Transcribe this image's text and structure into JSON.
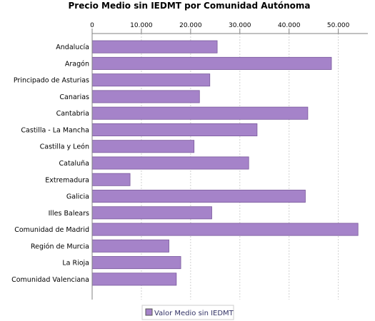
{
  "chart_data": {
    "type": "bar",
    "orientation": "horizontal",
    "title": "Precio Medio sin IEDMT por Comunidad Autónoma",
    "xlabel": "",
    "ylabel": "",
    "xlim": [
      0,
      56000
    ],
    "x_ticks": [
      0,
      10000,
      20000,
      30000,
      40000,
      50000
    ],
    "x_tick_labels": [
      "0",
      "10.000",
      "20.000",
      "30.000",
      "40.000",
      "50.000"
    ],
    "tick_position": "top",
    "grid": "vertical-dashed",
    "legend_position": "bottom-center",
    "categories": [
      "Andalucía",
      "Aragón",
      "Principado de Asturias",
      "Canarias",
      "Cantabria",
      "Castilla - La Mancha",
      "Castilla y León",
      "Cataluña",
      "Extremadura",
      "Galicia",
      "Illes Balears",
      "Comunidad de Madrid",
      "Región de Murcia",
      "La Rioja",
      "Comunidad Valenciana"
    ],
    "series": [
      {
        "name": "Valor Medio sin IEDMT",
        "color": "#a583c9",
        "values": [
          25400,
          48600,
          23900,
          21800,
          43800,
          33500,
          20700,
          31800,
          7700,
          43300,
          24300,
          54000,
          15600,
          18000,
          17100
        ]
      }
    ]
  }
}
